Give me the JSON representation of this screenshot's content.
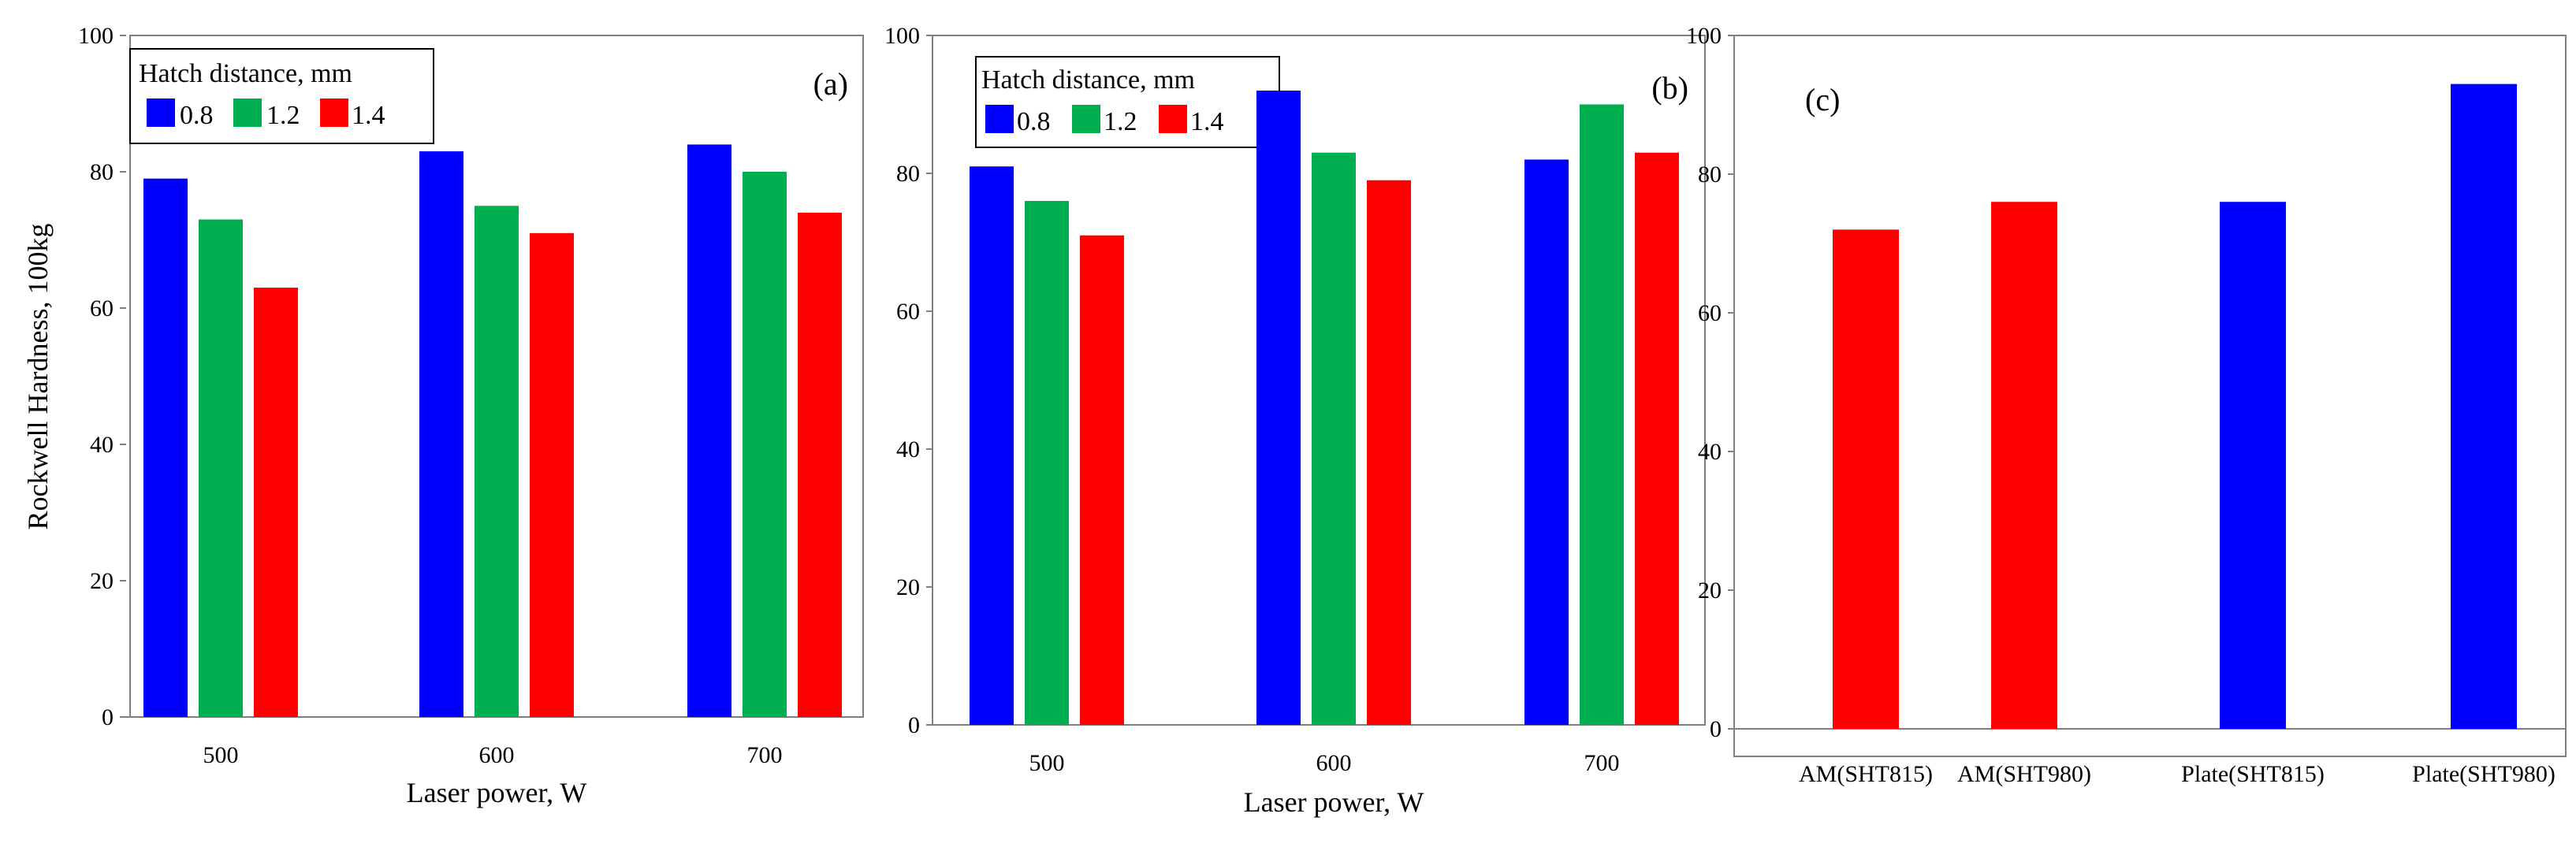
{
  "chart_data": [
    {
      "type": "bar",
      "panel_label": "(a)",
      "categories": [
        "500",
        "600",
        "700"
      ],
      "series": [
        {
          "name": "0.8",
          "color": "#0000ff",
          "values": [
            79,
            83,
            84
          ]
        },
        {
          "name": "1.2",
          "color": "#00b050",
          "values": [
            73,
            75,
            80
          ]
        },
        {
          "name": "1.4",
          "color": "#ff0000",
          "values": [
            63,
            71,
            74
          ]
        }
      ],
      "ylim": [
        0,
        100
      ],
      "yticks": [
        0,
        20,
        40,
        60,
        80,
        100
      ],
      "xlabel": "Laser power, W",
      "ylabel": "Rockwell Hardness, 100kg",
      "legend_title": "Hatch distance, mm",
      "legend_position": "top-left",
      "grid": false
    },
    {
      "type": "bar",
      "panel_label": "(b)",
      "categories": [
        "500",
        "600",
        "700"
      ],
      "series": [
        {
          "name": "0.8",
          "color": "#0000ff",
          "values": [
            81,
            92,
            82
          ]
        },
        {
          "name": "1.2",
          "color": "#00b050",
          "values": [
            76,
            83,
            90
          ]
        },
        {
          "name": "1.4",
          "color": "#ff0000",
          "values": [
            71,
            79,
            83
          ]
        }
      ],
      "ylim": [
        0,
        100
      ],
      "yticks": [
        0,
        20,
        40,
        60,
        80,
        100
      ],
      "xlabel": "Laser power, W",
      "ylabel": "",
      "legend_title": "Hatch distance, mm",
      "legend_position": "top-left",
      "grid": false
    },
    {
      "type": "bar",
      "panel_label": "(c)",
      "categories": [
        "AM(SHT815)",
        "AM(SHT980)",
        "Plate(SHT815)",
        "Plate(SHT980)"
      ],
      "values": [
        72,
        76,
        76,
        93
      ],
      "colors": [
        "#ff0000",
        "#ff0000",
        "#0000ff",
        "#0000ff"
      ],
      "ylim": [
        0,
        100
      ],
      "yticks": [
        0,
        20,
        40,
        60,
        80,
        100
      ],
      "xlabel": "",
      "ylabel": "",
      "grid": false
    }
  ]
}
